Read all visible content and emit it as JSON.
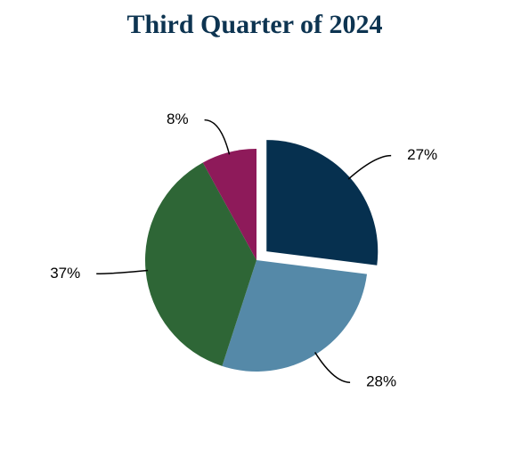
{
  "chart_data": {
    "type": "pie",
    "title": "Third Quarter of 2024",
    "values": [
      27,
      28,
      37,
      8
    ],
    "value_labels": [
      "27%",
      "28%",
      "37%",
      "8%"
    ],
    "colors": [
      "#06304f",
      "#5589a8",
      "#2e6636",
      "#8e1a5a"
    ],
    "explode": [
      0.12,
      0,
      0,
      0
    ]
  }
}
